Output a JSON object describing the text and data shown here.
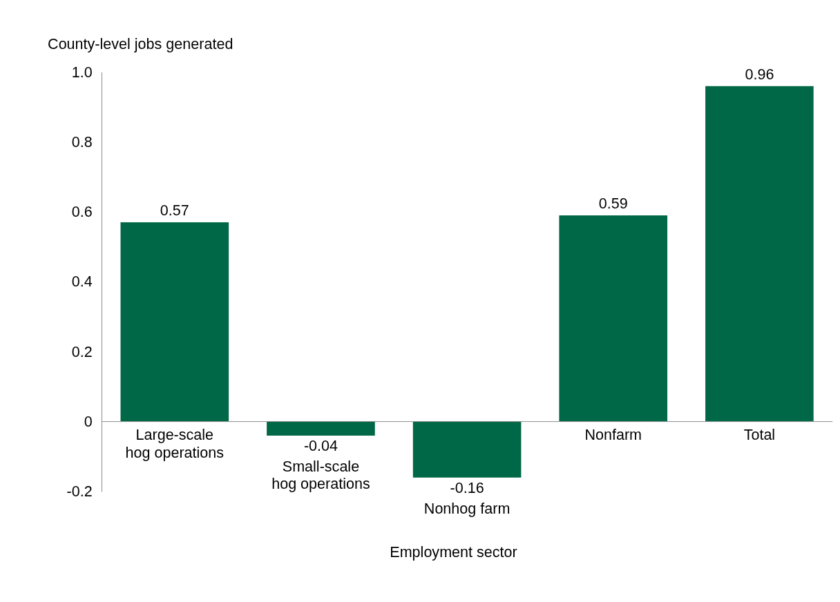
{
  "chart_data": {
    "type": "bar",
    "ylabel": "County-level jobs generated",
    "xlabel": "Employment sector",
    "categories": [
      "Large-scale hog operations",
      "Small-scale hog operations",
      "Nonhog farm",
      "Nonfarm",
      "Total"
    ],
    "values": [
      0.57,
      -0.04,
      -0.16,
      0.59,
      0.96
    ],
    "color": "#006747",
    "ylim": [
      -0.2,
      1.0
    ],
    "yticks": [
      {
        "value": -0.2,
        "label": "-0.2"
      },
      0,
      0.2,
      0.4,
      0.6,
      0.8,
      {
        "value": 1.0,
        "label": "1.0"
      }
    ],
    "data_labels": true,
    "grid": false
  }
}
